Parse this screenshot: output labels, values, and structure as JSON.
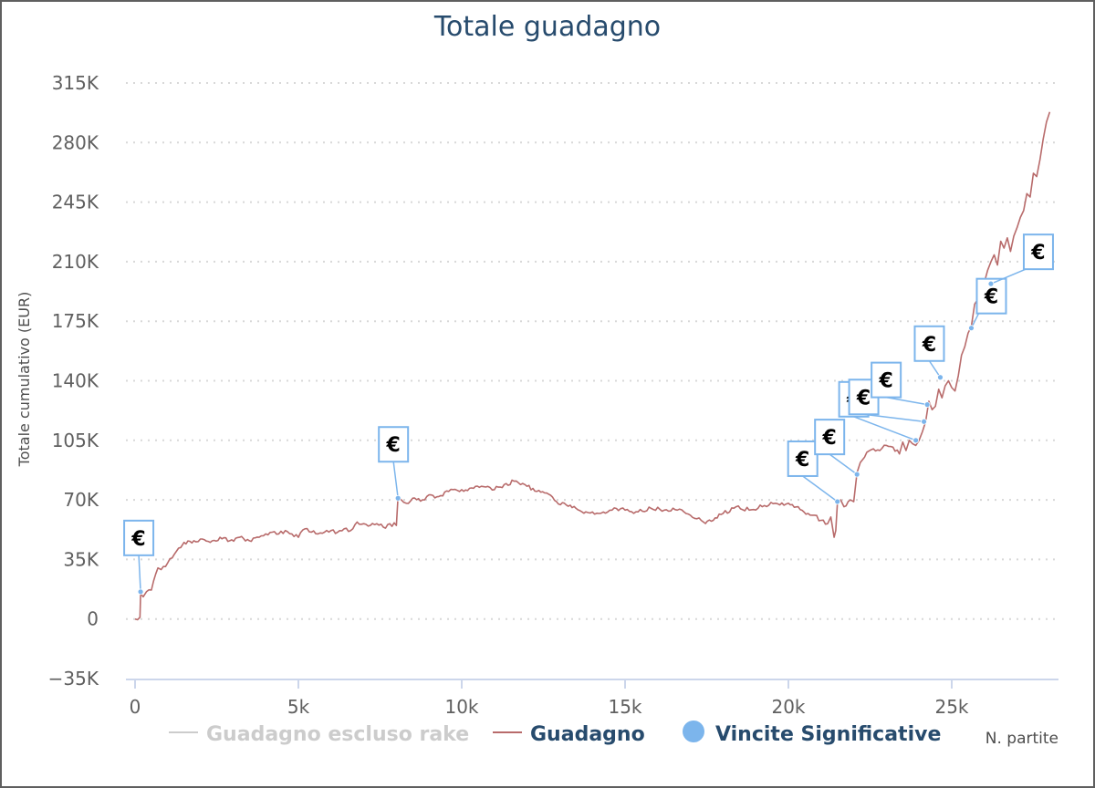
{
  "chart_data": {
    "type": "line",
    "title": "Totale guadagno",
    "ylabel": "Totale cumulativo (EUR)",
    "xlabel": "N. partite",
    "xlim": [
      0,
      28500
    ],
    "ylim": [
      -35000,
      315000
    ],
    "y_ticks": [
      {
        "value": 315000,
        "label": "315K"
      },
      {
        "value": 280000,
        "label": "280K"
      },
      {
        "value": 245000,
        "label": "245K"
      },
      {
        "value": 210000,
        "label": "210K"
      },
      {
        "value": 175000,
        "label": "175K"
      },
      {
        "value": 140000,
        "label": "140K"
      },
      {
        "value": 105000,
        "label": "105K"
      },
      {
        "value": 70000,
        "label": "70K"
      },
      {
        "value": 35000,
        "label": "35K"
      },
      {
        "value": 0,
        "label": "0"
      },
      {
        "value": -35000,
        "label": "−35K"
      }
    ],
    "x_ticks": [
      {
        "value": 0,
        "label": "0"
      },
      {
        "value": 5000,
        "label": "5k"
      },
      {
        "value": 10000,
        "label": "10k"
      },
      {
        "value": 15000,
        "label": "15k"
      },
      {
        "value": 20000,
        "label": "20k"
      },
      {
        "value": 25000,
        "label": "25k"
      }
    ],
    "grid": {
      "y": true,
      "x": false,
      "style": "dotted"
    },
    "legend": {
      "position": "bottom",
      "items": [
        {
          "name": "Guadagno escluso rake",
          "color": "#cccccc",
          "marker": "line",
          "hidden": true
        },
        {
          "name": "Guadagno",
          "color": "#b86b6b",
          "marker": "line",
          "hidden": false
        },
        {
          "name": "Vincite Significative",
          "color": "#7cb5ec",
          "marker": "circle",
          "hidden": false
        }
      ]
    },
    "series": [
      {
        "name": "Guadagno",
        "color": "#b86b6b",
        "x": [
          0,
          150,
          170,
          250,
          350,
          500,
          700,
          800,
          1000,
          1200,
          1400,
          1500,
          1800,
          2000,
          2300,
          2600,
          2900,
          3200,
          3500,
          3800,
          4000,
          4200,
          4400,
          4600,
          4800,
          5000,
          5200,
          5400,
          5600,
          5800,
          6000,
          6200,
          6400,
          6600,
          6800,
          7000,
          7200,
          7400,
          7600,
          7800,
          8000,
          8050,
          8150,
          8300,
          8500,
          8800,
          9000,
          9300,
          9600,
          10000,
          10300,
          10600,
          11000,
          11300,
          11600,
          11800,
          12000,
          12300,
          12600,
          12900,
          13200,
          13500,
          13800,
          14200,
          14600,
          15000,
          15400,
          15800,
          16200,
          16600,
          17000,
          17400,
          17700,
          18000,
          18400,
          18800,
          19200,
          19600,
          20000,
          20300,
          20600,
          20800,
          21000,
          21200,
          21300,
          21400,
          21450,
          21500,
          21600,
          21700,
          21900,
          22000,
          22100,
          22200,
          22400,
          22600,
          22800,
          23000,
          23200,
          23400,
          23500,
          23600,
          23700,
          23800,
          23900,
          24000,
          24100,
          24200,
          24300,
          24400,
          24500,
          24600,
          24700,
          24800,
          24900,
          25000,
          25100,
          25200,
          25300,
          25400,
          25500,
          25600,
          25700,
          25800,
          25900,
          26000,
          26100,
          26200,
          26300,
          26400,
          26500,
          26600,
          26700,
          26800,
          26900,
          27000,
          27100,
          27200,
          27300,
          27400,
          27500,
          27600,
          27700,
          27800,
          27900,
          28000
        ],
        "values": [
          0,
          1000,
          15000,
          13000,
          16000,
          17000,
          30000,
          29000,
          33000,
          38000,
          42000,
          45000,
          46000,
          47000,
          45000,
          48000,
          46000,
          48000,
          46000,
          48000,
          50000,
          51000,
          50000,
          52000,
          50000,
          48000,
          53000,
          51000,
          50000,
          51000,
          52000,
          51000,
          53000,
          52000,
          57000,
          56000,
          55000,
          56000,
          54000,
          56000,
          55000,
          72000,
          70000,
          68000,
          71000,
          70000,
          73000,
          72000,
          75000,
          76000,
          77000,
          78000,
          76000,
          79000,
          81000,
          79000,
          78000,
          75000,
          74000,
          69000,
          67000,
          65000,
          63000,
          62000,
          64000,
          64000,
          63000,
          65000,
          64000,
          64000,
          61000,
          57000,
          58000,
          62000,
          66000,
          64000,
          66000,
          68000,
          68000,
          66000,
          62000,
          61000,
          58000,
          56000,
          60000,
          48000,
          52000,
          68000,
          70000,
          66000,
          70000,
          69000,
          86000,
          92000,
          98000,
          100000,
          99000,
          102000,
          101000,
          97000,
          104000,
          99000,
          105000,
          103000,
          102000,
          105000,
          110000,
          116000,
          128000,
          123000,
          125000,
          135000,
          130000,
          137000,
          140000,
          136000,
          134000,
          143000,
          155000,
          160000,
          168000,
          172000,
          185000,
          188000,
          195000,
          198000,
          205000,
          210000,
          214000,
          208000,
          222000,
          218000,
          224000,
          216000,
          225000,
          230000,
          236000,
          240000,
          250000,
          248000,
          262000,
          260000,
          270000,
          282000,
          292000,
          298000
        ]
      },
      {
        "name": "Vincite Significative",
        "color": "#7cb5ec",
        "type": "scatter",
        "marker_label": "€",
        "x": [
          170,
          8050,
          21500,
          22100,
          23900,
          24150,
          24250,
          24650,
          25600,
          26200
        ],
        "values": [
          16000,
          71000,
          69000,
          85000,
          105000,
          116000,
          126000,
          142000,
          171000,
          197000
        ]
      }
    ]
  }
}
